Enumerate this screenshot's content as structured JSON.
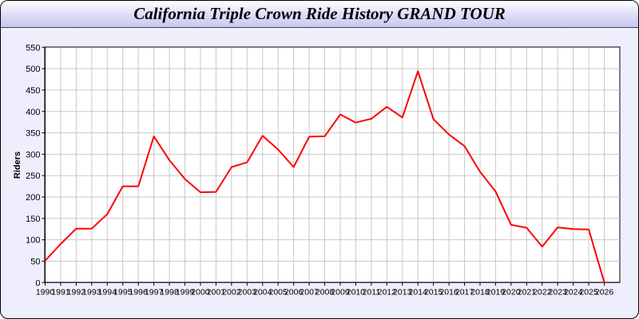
{
  "chart_data": {
    "type": "line",
    "title": "California Triple Crown Ride History GRAND TOUR",
    "xlabel": "",
    "ylabel": "Riders",
    "x": [
      1990,
      1991,
      1992,
      1993,
      1994,
      1995,
      1996,
      1997,
      1998,
      1999,
      2000,
      2001,
      2002,
      2003,
      2004,
      2005,
      2006,
      2007,
      2008,
      2009,
      2010,
      2011,
      2012,
      2013,
      2014,
      2015,
      2016,
      2017,
      2018,
      2019,
      2020,
      2021,
      2022,
      2023,
      2024,
      2025,
      2026
    ],
    "series": [
      {
        "values": [
          51,
          90,
          126,
          126,
          160,
          225,
          225,
          342,
          286,
          242,
          211,
          212,
          270,
          281,
          343,
          311,
          270,
          341,
          342,
          393,
          374,
          383,
          411,
          386,
          494,
          382,
          346,
          319,
          259,
          213,
          135,
          128,
          84,
          129,
          125,
          124,
          0
        ],
        "color": "#ff0000"
      }
    ],
    "xlim": [
      1990,
      2027
    ],
    "ylim": [
      0,
      550
    ],
    "yticks": [
      0,
      50,
      100,
      150,
      200,
      250,
      300,
      350,
      400,
      450,
      500,
      550
    ],
    "grid": true,
    "grid_color": "#c8c8c8",
    "background": "#eeeefc"
  }
}
